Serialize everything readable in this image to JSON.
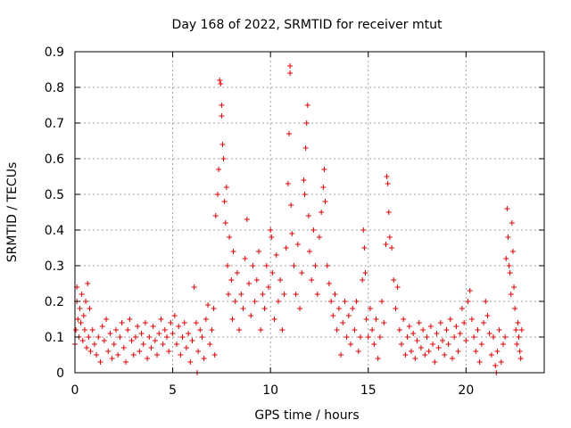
{
  "chart_data": {
    "type": "scatter",
    "title": "Day 168 of 2022, SRMTID for receiver mtut",
    "xlabel": "GPS time / hours",
    "ylabel": "SRMTID / TECUs",
    "xlim": [
      0,
      24.0
    ],
    "ylim": [
      0,
      0.9
    ],
    "xticks": [
      0,
      5,
      10,
      15,
      20
    ],
    "yticks": [
      0,
      0.1,
      0.2,
      0.3,
      0.4,
      0.5,
      0.6,
      0.7,
      0.8,
      0.9
    ],
    "grid": true,
    "marker": "plus",
    "marker_color": "#e00000",
    "series": [
      {
        "name": "SRMTID",
        "points": [
          [
            0.0,
            0.08
          ],
          [
            0.05,
            0.12
          ],
          [
            0.1,
            0.2
          ],
          [
            0.1,
            0.24
          ],
          [
            0.15,
            0.15
          ],
          [
            0.2,
            0.1
          ],
          [
            0.25,
            0.18
          ],
          [
            0.3,
            0.14
          ],
          [
            0.35,
            0.22
          ],
          [
            0.4,
            0.09
          ],
          [
            0.45,
            0.16
          ],
          [
            0.5,
            0.12
          ],
          [
            0.55,
            0.2
          ],
          [
            0.6,
            0.07
          ],
          [
            0.65,
            0.25
          ],
          [
            0.7,
            0.1
          ],
          [
            0.75,
            0.18
          ],
          [
            0.8,
            0.06
          ],
          [
            0.9,
            0.12
          ],
          [
            1.0,
            0.08
          ],
          [
            1.1,
            0.05
          ],
          [
            1.2,
            0.1
          ],
          [
            1.3,
            0.03
          ],
          [
            1.4,
            0.13
          ],
          [
            1.5,
            0.09
          ],
          [
            1.6,
            0.15
          ],
          [
            1.7,
            0.06
          ],
          [
            1.8,
            0.11
          ],
          [
            1.9,
            0.04
          ],
          [
            2.0,
            0.08
          ],
          [
            2.1,
            0.12
          ],
          [
            2.2,
            0.05
          ],
          [
            2.3,
            0.1
          ],
          [
            2.4,
            0.14
          ],
          [
            2.5,
            0.07
          ],
          [
            2.6,
            0.03
          ],
          [
            2.7,
            0.12
          ],
          [
            2.8,
            0.15
          ],
          [
            2.9,
            0.09
          ],
          [
            3.0,
            0.05
          ],
          [
            3.1,
            0.1
          ],
          [
            3.2,
            0.13
          ],
          [
            3.3,
            0.06
          ],
          [
            3.4,
            0.11
          ],
          [
            3.5,
            0.08
          ],
          [
            3.6,
            0.14
          ],
          [
            3.7,
            0.04
          ],
          [
            3.8,
            0.1
          ],
          [
            3.9,
            0.07
          ],
          [
            4.0,
            0.13
          ],
          [
            4.1,
            0.09
          ],
          [
            4.2,
            0.05
          ],
          [
            4.3,
            0.11
          ],
          [
            4.4,
            0.15
          ],
          [
            4.5,
            0.08
          ],
          [
            4.6,
            0.12
          ],
          [
            4.7,
            0.1
          ],
          [
            4.8,
            0.06
          ],
          [
            4.9,
            0.14
          ],
          [
            5.0,
            0.11
          ],
          [
            5.1,
            0.16
          ],
          [
            5.2,
            0.08
          ],
          [
            5.3,
            0.13
          ],
          [
            5.4,
            0.05
          ],
          [
            5.5,
            0.1
          ],
          [
            5.6,
            0.14
          ],
          [
            5.7,
            0.07
          ],
          [
            5.8,
            0.11
          ],
          [
            5.9,
            0.03
          ],
          [
            6.0,
            0.09
          ],
          [
            6.1,
            0.24
          ],
          [
            6.2,
            0.14
          ],
          [
            6.25,
            0.0
          ],
          [
            6.3,
            0.06
          ],
          [
            6.4,
            0.12
          ],
          [
            6.5,
            0.1
          ],
          [
            6.6,
            0.04
          ],
          [
            6.7,
            0.15
          ],
          [
            6.8,
            0.19
          ],
          [
            6.9,
            0.08
          ],
          [
            7.0,
            0.12
          ],
          [
            7.1,
            0.18
          ],
          [
            7.15,
            0.05
          ],
          [
            7.2,
            0.44
          ],
          [
            7.3,
            0.5
          ],
          [
            7.35,
            0.57
          ],
          [
            7.4,
            0.82
          ],
          [
            7.45,
            0.81
          ],
          [
            7.5,
            0.75
          ],
          [
            7.5,
            0.72
          ],
          [
            7.55,
            0.64
          ],
          [
            7.6,
            0.6
          ],
          [
            7.65,
            0.48
          ],
          [
            7.7,
            0.42
          ],
          [
            7.75,
            0.52
          ],
          [
            7.8,
            0.3
          ],
          [
            7.85,
            0.22
          ],
          [
            7.9,
            0.38
          ],
          [
            8.0,
            0.26
          ],
          [
            8.05,
            0.15
          ],
          [
            8.1,
            0.34
          ],
          [
            8.2,
            0.2
          ],
          [
            8.3,
            0.28
          ],
          [
            8.4,
            0.12
          ],
          [
            8.5,
            0.22
          ],
          [
            8.6,
            0.18
          ],
          [
            8.7,
            0.32
          ],
          [
            8.8,
            0.43
          ],
          [
            8.9,
            0.25
          ],
          [
            9.0,
            0.16
          ],
          [
            9.1,
            0.3
          ],
          [
            9.2,
            0.2
          ],
          [
            9.3,
            0.26
          ],
          [
            9.4,
            0.34
          ],
          [
            9.5,
            0.12
          ],
          [
            9.6,
            0.22
          ],
          [
            9.7,
            0.18
          ],
          [
            9.8,
            0.3
          ],
          [
            9.9,
            0.24
          ],
          [
            10.0,
            0.4
          ],
          [
            10.05,
            0.38
          ],
          [
            10.1,
            0.28
          ],
          [
            10.2,
            0.15
          ],
          [
            10.3,
            0.33
          ],
          [
            10.4,
            0.2
          ],
          [
            10.5,
            0.26
          ],
          [
            10.6,
            0.12
          ],
          [
            10.7,
            0.22
          ],
          [
            10.8,
            0.35
          ],
          [
            10.9,
            0.53
          ],
          [
            10.95,
            0.67
          ],
          [
            11.0,
            0.86
          ],
          [
            11.0,
            0.84
          ],
          [
            11.05,
            0.47
          ],
          [
            11.1,
            0.39
          ],
          [
            11.2,
            0.3
          ],
          [
            11.3,
            0.22
          ],
          [
            11.4,
            0.36
          ],
          [
            11.5,
            0.18
          ],
          [
            11.6,
            0.28
          ],
          [
            11.7,
            0.54
          ],
          [
            11.75,
            0.5
          ],
          [
            11.8,
            0.63
          ],
          [
            11.85,
            0.7
          ],
          [
            11.9,
            0.75
          ],
          [
            11.95,
            0.44
          ],
          [
            12.0,
            0.34
          ],
          [
            12.1,
            0.26
          ],
          [
            12.2,
            0.4
          ],
          [
            12.3,
            0.3
          ],
          [
            12.4,
            0.22
          ],
          [
            12.5,
            0.38
          ],
          [
            12.6,
            0.45
          ],
          [
            12.7,
            0.52
          ],
          [
            12.75,
            0.57
          ],
          [
            12.8,
            0.48
          ],
          [
            12.9,
            0.3
          ],
          [
            13.0,
            0.25
          ],
          [
            13.1,
            0.2
          ],
          [
            13.2,
            0.16
          ],
          [
            13.3,
            0.22
          ],
          [
            13.4,
            0.12
          ],
          [
            13.5,
            0.18
          ],
          [
            13.6,
            0.05
          ],
          [
            13.7,
            0.14
          ],
          [
            13.8,
            0.2
          ],
          [
            13.9,
            0.1
          ],
          [
            14.0,
            0.16
          ],
          [
            14.1,
            0.08
          ],
          [
            14.2,
            0.18
          ],
          [
            14.3,
            0.12
          ],
          [
            14.4,
            0.2
          ],
          [
            14.5,
            0.06
          ],
          [
            14.6,
            0.1
          ],
          [
            14.7,
            0.26
          ],
          [
            14.75,
            0.4
          ],
          [
            14.8,
            0.35
          ],
          [
            14.85,
            0.28
          ],
          [
            14.9,
            0.15
          ],
          [
            15.0,
            0.1
          ],
          [
            15.1,
            0.18
          ],
          [
            15.2,
            0.12
          ],
          [
            15.3,
            0.08
          ],
          [
            15.4,
            0.15
          ],
          [
            15.5,
            0.04
          ],
          [
            15.6,
            0.1
          ],
          [
            15.7,
            0.2
          ],
          [
            15.8,
            0.14
          ],
          [
            15.9,
            0.36
          ],
          [
            15.95,
            0.55
          ],
          [
            16.0,
            0.53
          ],
          [
            16.05,
            0.45
          ],
          [
            16.1,
            0.38
          ],
          [
            16.2,
            0.35
          ],
          [
            16.3,
            0.26
          ],
          [
            16.4,
            0.18
          ],
          [
            16.5,
            0.24
          ],
          [
            16.6,
            0.12
          ],
          [
            16.7,
            0.08
          ],
          [
            16.8,
            0.15
          ],
          [
            16.9,
            0.05
          ],
          [
            17.0,
            0.1
          ],
          [
            17.1,
            0.13
          ],
          [
            17.2,
            0.06
          ],
          [
            17.3,
            0.11
          ],
          [
            17.4,
            0.04
          ],
          [
            17.5,
            0.09
          ],
          [
            17.6,
            0.14
          ],
          [
            17.7,
            0.07
          ],
          [
            17.8,
            0.12
          ],
          [
            17.9,
            0.05
          ],
          [
            18.0,
            0.1
          ],
          [
            18.1,
            0.06
          ],
          [
            18.2,
            0.13
          ],
          [
            18.3,
            0.08
          ],
          [
            18.4,
            0.03
          ],
          [
            18.5,
            0.11
          ],
          [
            18.6,
            0.07
          ],
          [
            18.7,
            0.14
          ],
          [
            18.8,
            0.09
          ],
          [
            18.9,
            0.05
          ],
          [
            19.0,
            0.12
          ],
          [
            19.1,
            0.08
          ],
          [
            19.2,
            0.15
          ],
          [
            19.3,
            0.04
          ],
          [
            19.4,
            0.1
          ],
          [
            19.5,
            0.13
          ],
          [
            19.6,
            0.06
          ],
          [
            19.7,
            0.11
          ],
          [
            19.8,
            0.18
          ],
          [
            19.9,
            0.14
          ],
          [
            20.0,
            0.09
          ],
          [
            20.1,
            0.2
          ],
          [
            20.2,
            0.23
          ],
          [
            20.3,
            0.15
          ],
          [
            20.4,
            0.1
          ],
          [
            20.5,
            0.06
          ],
          [
            20.6,
            0.12
          ],
          [
            20.7,
            0.03
          ],
          [
            20.8,
            0.08
          ],
          [
            20.9,
            0.14
          ],
          [
            21.0,
            0.2
          ],
          [
            21.1,
            0.16
          ],
          [
            21.2,
            0.11
          ],
          [
            21.3,
            0.05
          ],
          [
            21.4,
            0.1
          ],
          [
            21.5,
            0.02
          ],
          [
            21.55,
            0.0
          ],
          [
            21.6,
            0.06
          ],
          [
            21.7,
            0.12
          ],
          [
            21.8,
            0.03
          ],
          [
            21.9,
            0.08
          ],
          [
            22.0,
            0.1
          ],
          [
            22.05,
            0.32
          ],
          [
            22.1,
            0.46
          ],
          [
            22.15,
            0.38
          ],
          [
            22.2,
            0.3
          ],
          [
            22.25,
            0.28
          ],
          [
            22.3,
            0.22
          ],
          [
            22.35,
            0.42
          ],
          [
            22.4,
            0.34
          ],
          [
            22.45,
            0.24
          ],
          [
            22.5,
            0.18
          ],
          [
            22.55,
            0.12
          ],
          [
            22.6,
            0.08
          ],
          [
            22.65,
            0.14
          ],
          [
            22.7,
            0.1
          ],
          [
            22.75,
            0.06
          ],
          [
            22.8,
            0.04
          ],
          [
            22.85,
            0.12
          ]
        ]
      }
    ]
  }
}
